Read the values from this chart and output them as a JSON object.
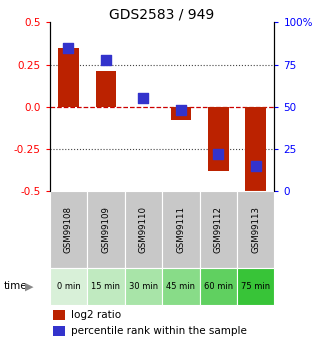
{
  "title": "GDS2583 / 949",
  "categories": [
    "GSM99108",
    "GSM99109",
    "GSM99110",
    "GSM99111",
    "GSM99112",
    "GSM99113"
  ],
  "time_labels": [
    "0 min",
    "15 min",
    "30 min",
    "45 min",
    "60 min",
    "75 min"
  ],
  "log2_ratios": [
    0.35,
    0.21,
    0.0,
    -0.08,
    -0.38,
    -0.52
  ],
  "percentile_ranks": [
    85,
    78,
    55,
    48,
    22,
    15
  ],
  "bar_color": "#bb2200",
  "dot_color": "#3333cc",
  "ylim_left": [
    -0.5,
    0.5
  ],
  "ylim_right": [
    0,
    100
  ],
  "yticks_left": [
    -0.5,
    -0.25,
    0.0,
    0.25,
    0.5
  ],
  "yticks_right": [
    0,
    25,
    50,
    75,
    100
  ],
  "dotted_lines": [
    -0.25,
    0.25
  ],
  "zero_line_color": "#cc0000",
  "gsm_bg_color": "#c8c8c8",
  "gsm_border_color": "#aaaaaa",
  "time_colors": [
    "#d8f0d8",
    "#c0eac0",
    "#a8e4a8",
    "#88dc88",
    "#60d060",
    "#38c438"
  ],
  "bar_width": 0.55,
  "dot_size": 45,
  "title_fontsize": 10,
  "tick_fontsize": 7.5,
  "legend_fontsize": 7.5
}
